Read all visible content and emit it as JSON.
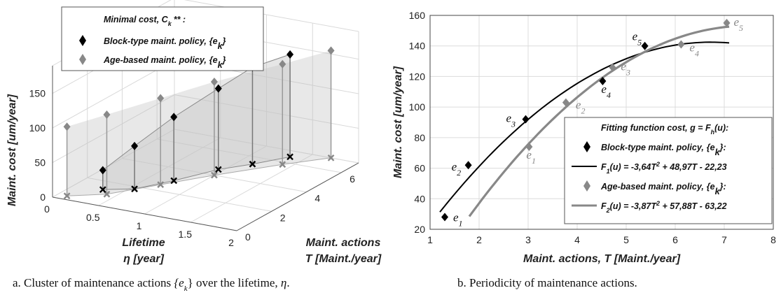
{
  "chart_data": [
    {
      "type": "scatter",
      "projection": "3d",
      "zlabel": "Maint. cost [um/year]",
      "xlabel_lines": [
        "Lifetime",
        "η  [year]"
      ],
      "ylabel_lines": [
        "Maint. actions",
        "T  [Maint./year]"
      ],
      "x_ticks": [
        "0",
        "0.5",
        "1",
        "1.5",
        "2"
      ],
      "y_ticks": [
        "0",
        "2",
        "4",
        "6"
      ],
      "z_ticks": [
        "0",
        "50",
        "100",
        "150"
      ],
      "legend": {
        "title": "Minimal cost, C",
        "title_sub": "k",
        "title_sup": "** :",
        "entries": [
          {
            "label": "Block-type maint. policy,",
            "set": "{e",
            "sub": "k",
            "close": "}",
            "color": "#000000"
          },
          {
            "label": "Age-based maint. policy,",
            "set": "{e",
            "sub": "k",
            "close": "}",
            "color": "#888888"
          }
        ]
      },
      "series": [
        {
          "name": "Block-type maint. policy",
          "color": "#000000",
          "points": [
            {
              "eta": 0.3,
              "T": 1.3,
              "cost": 28
            },
            {
              "eta": 0.55,
              "T": 1.8,
              "cost": 62
            },
            {
              "eta": 0.75,
              "T": 3.0,
              "cost": 92
            },
            {
              "eta": 0.95,
              "T": 4.5,
              "cost": 117
            },
            {
              "eta": 1.15,
              "T": 5.4,
              "cost": 140
            },
            {
              "eta": 1.35,
              "T": 6.5,
              "cost": 148
            }
          ]
        },
        {
          "name": "Age-based maint. policy",
          "color": "#888888",
          "points": [
            {
              "eta": 0.1,
              "T": 0.3,
              "cost": 100
            },
            {
              "eta": 0.4,
              "T": 1.0,
              "cost": 115
            },
            {
              "eta": 0.7,
              "T": 2.5,
              "cost": 125
            },
            {
              "eta": 1.0,
              "T": 4.0,
              "cost": 135
            },
            {
              "eta": 1.4,
              "T": 5.8,
              "cost": 145
            },
            {
              "eta": 1.7,
              "T": 7.0,
              "cost": 155
            }
          ]
        }
      ]
    },
    {
      "type": "scatter",
      "xlabel": "Maint. actions, T  [Maint./year]",
      "ylabel": "Maint. cost [um/year]",
      "xlim": [
        1,
        8
      ],
      "ylim": [
        20,
        160
      ],
      "x_ticks": [
        1,
        2,
        3,
        4,
        5,
        6,
        7,
        8
      ],
      "y_ticks": [
        20,
        40,
        60,
        80,
        100,
        120,
        140,
        160
      ],
      "grid": true,
      "series": [
        {
          "name": "Block-type maint. policy",
          "color": "#000000",
          "marker": "diamond",
          "points": [
            {
              "x": 1.3,
              "y": 28,
              "label": "e1"
            },
            {
              "x": 1.78,
              "y": 62,
              "label": "e2"
            },
            {
              "x": 2.95,
              "y": 92,
              "label": "e3"
            },
            {
              "x": 4.52,
              "y": 117,
              "label": "e4"
            },
            {
              "x": 5.38,
              "y": 140,
              "label": "e5"
            }
          ]
        },
        {
          "name": "Age-based maint. policy",
          "color": "#888888",
          "marker": "diamond",
          "points": [
            {
              "x": 3.02,
              "y": 74,
              "label": "e1"
            },
            {
              "x": 3.77,
              "y": 103,
              "label": "e2"
            },
            {
              "x": 4.72,
              "y": 126,
              "label": "e3"
            },
            {
              "x": 6.12,
              "y": 141,
              "label": "e4"
            },
            {
              "x": 7.05,
              "y": 155,
              "label": "e5"
            }
          ]
        }
      ],
      "fits": [
        {
          "name": "F1",
          "a": -3.64,
          "b": 48.97,
          "c": -22.23,
          "x_from": 1.2,
          "x_to": 7.1,
          "color": "#000000"
        },
        {
          "name": "F2",
          "a": -3.87,
          "b": 57.88,
          "c": -63.22,
          "x_from": 1.8,
          "x_to": 7.1,
          "color": "#888888"
        }
      ],
      "legend": {
        "title": "Fitting function cost, g = F",
        "title_sub": "h",
        "title_end": "(u):",
        "block_label": "Block-type maint. policy,",
        "age_label": "Age-based maint. policy,",
        "set": "{e",
        "sub": "k",
        "close": "}:",
        "f1_text": "F",
        "f1_sub": "1",
        "f1_eq": "(u) = -3,64T",
        "f1_rest": " + 48,97T - 22,23",
        "f2_text": "F",
        "f2_sub": "2",
        "f2_eq": "(u) = -3,87T",
        "f2_rest": " + 57,88T - 63,22",
        "sq": "2"
      }
    }
  ],
  "captions": {
    "a_prefix": "a. Cluster of maintenance actions ",
    "a_set": "{e",
    "a_sub": "k",
    "a_mid": "}",
    "a_rest": " over the lifetime, ",
    "a_eta": "η",
    "a_end": ".",
    "b": "b. Periodicity of maintenance actions."
  }
}
